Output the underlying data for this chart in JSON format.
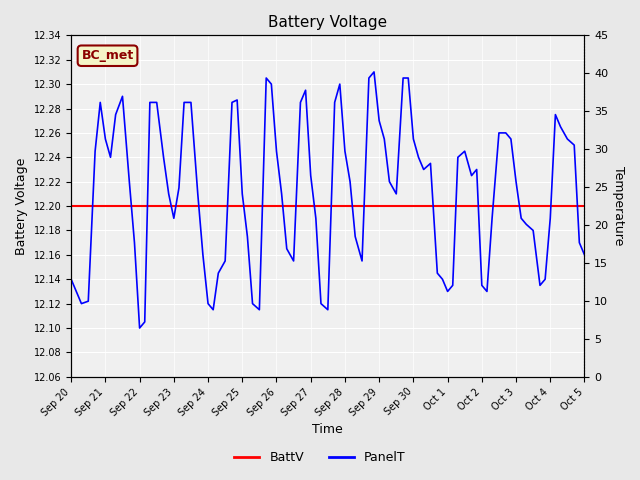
{
  "title": "Battery Voltage",
  "xlabel": "Time",
  "ylabel_left": "Battery Voltage",
  "ylabel_right": "Temperature",
  "ylim_left": [
    12.06,
    12.34
  ],
  "ylim_right": [
    0,
    45
  ],
  "yticks_left": [
    12.06,
    12.08,
    12.1,
    12.12,
    12.14,
    12.16,
    12.18,
    12.2,
    12.22,
    12.24,
    12.26,
    12.28,
    12.3,
    12.32,
    12.34
  ],
  "yticks_right": [
    0,
    5,
    10,
    15,
    20,
    25,
    30,
    35,
    40,
    45
  ],
  "batt_v": 12.2,
  "bg_color": "#e8e8e8",
  "plot_bg_color": "#f0f0f0",
  "batt_line_color": "red",
  "panel_line_color": "blue",
  "legend_label_batt": "BattV",
  "legend_label_panel": "PanelT",
  "annotation_text": "BC_met",
  "annotation_color": "#8B0000",
  "annotation_bg": "#f5f5c8",
  "x_tick_labels": [
    "Sep 20",
    "Sep 21",
    "Sep 22",
    "Sep 23",
    "Sep 24",
    "Sep 25",
    "Sep 26",
    "Sep 27",
    "Sep 28",
    "Sep 29",
    "Sep 30",
    "Oct 1",
    "Oct 2",
    "Oct 3",
    "Oct 4",
    "Oct 5"
  ],
  "panel_t_data_x": [
    0,
    0.15,
    0.3,
    0.5,
    0.7,
    0.85,
    1.0,
    1.15,
    1.3,
    1.5,
    1.7,
    1.85,
    2.0,
    2.15,
    2.3,
    2.5,
    2.7,
    2.85,
    3.0,
    3.15,
    3.3,
    3.5,
    3.7,
    3.85,
    4.0,
    4.15,
    4.3,
    4.5,
    4.7,
    4.85,
    5.0,
    5.15,
    5.3,
    5.5,
    5.7,
    5.85,
    6.0,
    6.15,
    6.3,
    6.5,
    6.7,
    6.85,
    7.0,
    7.15,
    7.3,
    7.5,
    7.7,
    7.85,
    8.0,
    8.15,
    8.3,
    8.5,
    8.7,
    8.85,
    9.0,
    9.15,
    9.3,
    9.5,
    9.7,
    9.85,
    10.0,
    10.15,
    10.3,
    10.5,
    10.7,
    10.85,
    11.0,
    11.15,
    11.3,
    11.5,
    11.7,
    11.85,
    12.0,
    12.15,
    12.3,
    12.5,
    12.7,
    12.85,
    13.0,
    13.15,
    13.3,
    13.5,
    13.7,
    13.85,
    14.0,
    14.15,
    14.3,
    14.5,
    14.7,
    14.85,
    15.0
  ],
  "panel_t_data_y": [
    12.14,
    12.13,
    12.12,
    12.122,
    12.245,
    12.285,
    12.255,
    12.24,
    12.275,
    12.29,
    12.22,
    12.17,
    12.1,
    12.105,
    12.285,
    12.285,
    12.24,
    12.21,
    12.19,
    12.215,
    12.285,
    12.285,
    12.21,
    12.16,
    12.12,
    12.115,
    12.145,
    12.155,
    12.285,
    12.287,
    12.21,
    12.175,
    12.12,
    12.115,
    12.305,
    12.3,
    12.245,
    12.21,
    12.165,
    12.155,
    12.285,
    12.295,
    12.225,
    12.19,
    12.12,
    12.115,
    12.285,
    12.3,
    12.245,
    12.22,
    12.175,
    12.155,
    12.305,
    12.31,
    12.27,
    12.255,
    12.22,
    12.21,
    12.305,
    12.305,
    12.255,
    12.24,
    12.23,
    12.235,
    12.145,
    12.14,
    12.13,
    12.135,
    12.24,
    12.245,
    12.225,
    12.23,
    12.135,
    12.13,
    12.19,
    12.26,
    12.26,
    12.255,
    12.22,
    12.19,
    12.185,
    12.18,
    12.135,
    12.14,
    12.19,
    12.275,
    12.265,
    12.255,
    12.25,
    12.17,
    12.16
  ]
}
